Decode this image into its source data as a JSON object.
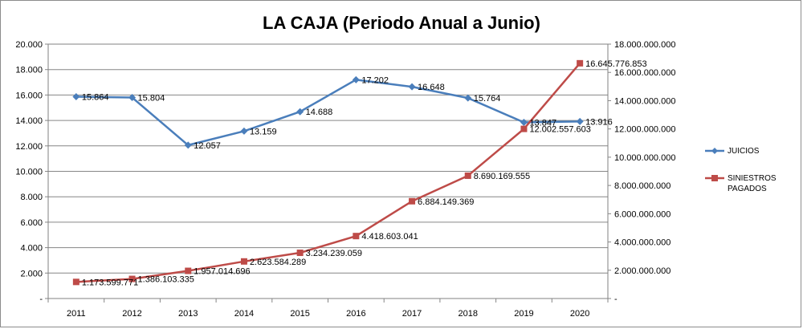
{
  "chart_data": {
    "type": "line",
    "title": "LA CAJA (Periodo Anual a Junio)",
    "categories": [
      "2011",
      "2012",
      "2013",
      "2014",
      "2015",
      "2016",
      "2017",
      "2018",
      "2019",
      "2020"
    ],
    "y_left": {
      "ylim": [
        0,
        20000
      ],
      "ticks": [
        0,
        2000,
        4000,
        6000,
        8000,
        10000,
        12000,
        14000,
        16000,
        18000,
        20000
      ],
      "tick_labels": [
        "-",
        "2.000",
        "4.000",
        "6.000",
        "8.000",
        "10.000",
        "12.000",
        "14.000",
        "16.000",
        "18.000",
        "20.000"
      ]
    },
    "y_right": {
      "ylim": [
        0,
        18000000000
      ],
      "ticks": [
        0,
        2000000000,
        4000000000,
        6000000000,
        8000000000,
        10000000000,
        12000000000,
        14000000000,
        16000000000,
        18000000000
      ],
      "tick_labels": [
        "-",
        "2.000.000.000",
        "4.000.000.000",
        "6.000.000.000",
        "8.000.000.000",
        "10.000.000.000",
        "12.000.000.000",
        "14.000.000.000",
        "16.000.000.000",
        "18.000.000.000"
      ]
    },
    "series": [
      {
        "name": "JUICIOS",
        "axis": "left",
        "color": "#4a7ebb",
        "marker": "diamond",
        "values": [
          15864,
          15804,
          12057,
          13159,
          14688,
          17202,
          16648,
          15764,
          13847,
          13916
        ],
        "labels": [
          "15.864",
          "15.804",
          "12.057",
          "13.159",
          "14.688",
          "17.202",
          "16.648",
          "15.764",
          "13.847",
          "13.916"
        ]
      },
      {
        "name": "SINIESTROS PAGADOS",
        "axis": "right",
        "color": "#be4b48",
        "marker": "square",
        "values": [
          1173599771,
          1386103335,
          1957014696,
          2623584289,
          3234239059,
          4418603041,
          6884149369,
          8690169555,
          12002557603,
          16645776853
        ],
        "labels": [
          "1.173.599.771",
          "1.386.103.335",
          "1.957.014.696",
          "2.623.584.289",
          "3.234.239.059",
          "4.418.603.041",
          "6.884.149.369",
          "8.690.169.555",
          "12.002.557.603",
          "16.645.776.853"
        ]
      }
    ],
    "legend": {
      "placement": "right",
      "items": [
        {
          "label": "JUICIOS",
          "color": "#4a7ebb"
        },
        {
          "label": "SINIESTROS",
          "color": "#be4b48"
        },
        {
          "label": "PAGADOS",
          "color": ""
        }
      ]
    }
  }
}
